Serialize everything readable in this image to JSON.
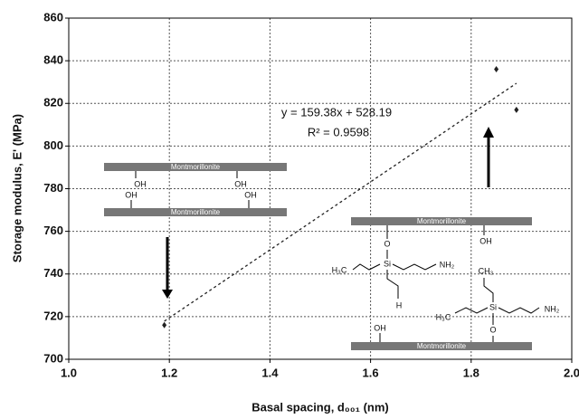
{
  "chart_data": {
    "type": "scatter",
    "xlabel": "Basal spacing, d₀₀₁ (nm)",
    "ylabel": "Storage modulus, E' (MPa)",
    "series": [
      {
        "color": "#222222",
        "x": [
          1.19,
          1.85,
          1.89
        ],
        "values": [
          716,
          836,
          817
        ]
      }
    ],
    "trendline": {
      "label": "y = 159.38x + 528.19",
      "r2_label": "R² = 0.9598",
      "slope": 159.38,
      "intercept": 528.19
    },
    "xlim": [
      1.0,
      2.0
    ],
    "xticks": [
      {
        "value": 1.0,
        "label": "1.0"
      },
      1.2,
      1.4,
      1.6,
      1.8,
      {
        "value": 2.0,
        "label": "2.0"
      }
    ],
    "ylim": [
      700,
      860
    ],
    "yticks": [
      700,
      720,
      740,
      760,
      780,
      800,
      820,
      840,
      860
    ],
    "grid": true,
    "labels": {
      "clay": "Montmorillonite",
      "oh": "OH",
      "o": "O",
      "si": "Si",
      "h": "H",
      "h3c": "H₃C",
      "nh2": "NH₂",
      "ch3": "CH₃"
    }
  }
}
